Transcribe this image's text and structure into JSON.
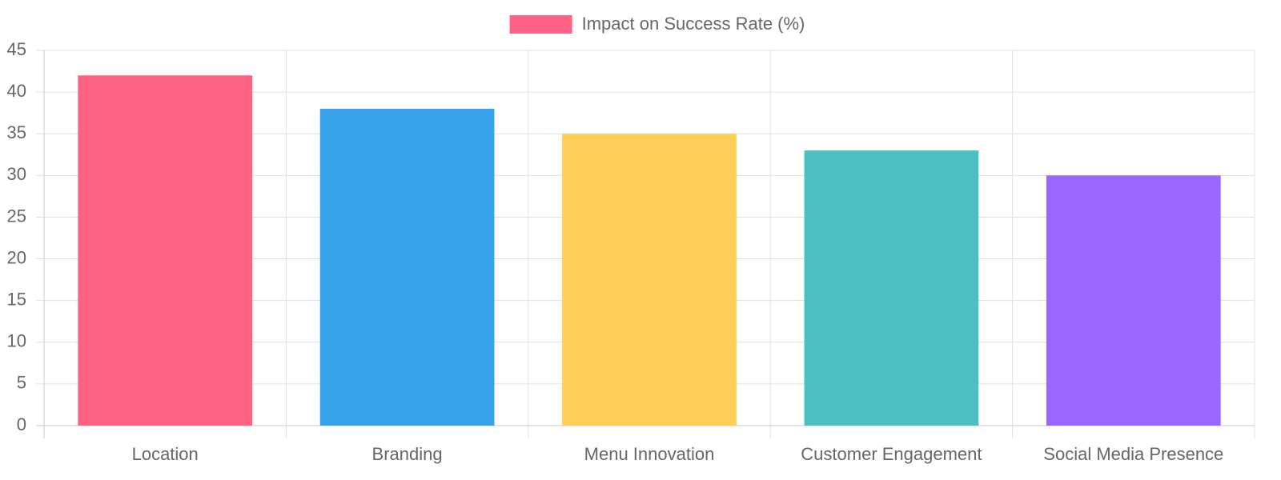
{
  "chart_data": {
    "type": "bar",
    "categories": [
      "Location",
      "Branding",
      "Menu Innovation",
      "Customer Engagement",
      "Social Media Presence"
    ],
    "series": [
      {
        "name": "Impact on Success Rate (%)",
        "values": [
          42,
          38,
          35,
          33,
          30
        ],
        "colors": [
          "#ff6384",
          "#36a2eb",
          "#ffce56",
          "#4bc0c0",
          "#9966ff"
        ]
      }
    ],
    "ylim": [
      0,
      45
    ],
    "yticks": [
      0,
      5,
      10,
      15,
      20,
      25,
      30,
      35,
      40,
      45
    ],
    "grid": true,
    "legend": "top"
  }
}
